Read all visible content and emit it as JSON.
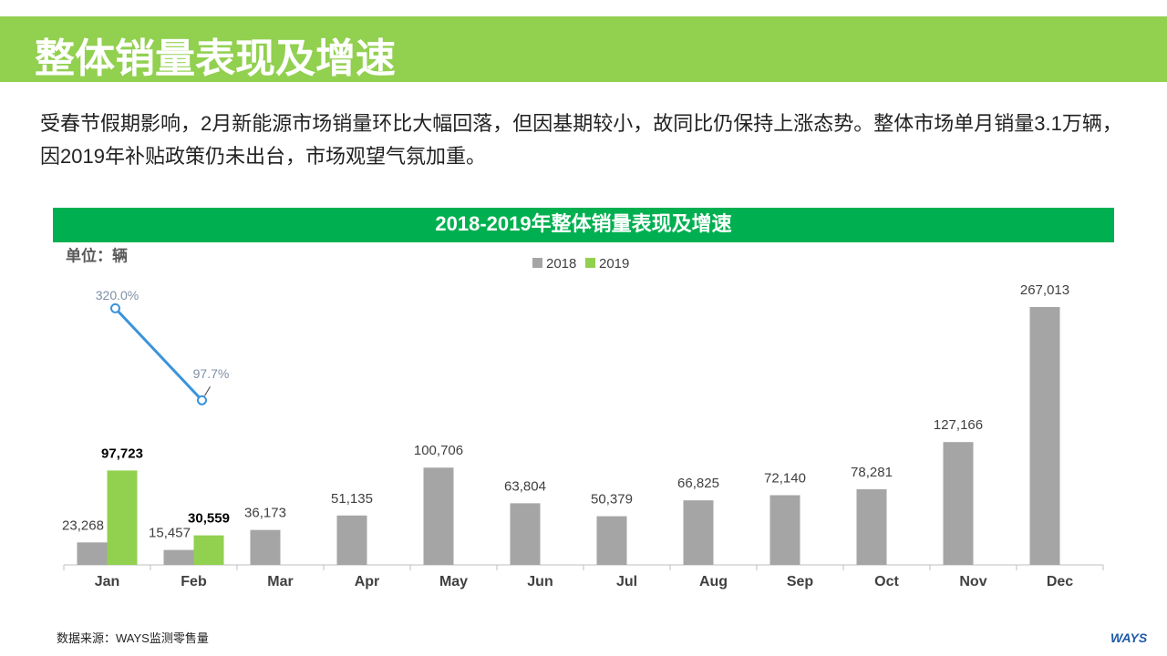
{
  "header": {
    "title": "整体销量表现及增速"
  },
  "description": "受春节假期影响，2月新能源市场销量环比大幅回落，但因基期较小，故同比仍保持上涨态势。整体市场单月销量3.1万辆，因2019年补贴政策仍未出台，市场观望气氛加重。",
  "chart_data": {
    "type": "bar",
    "title": "2018-2019年整体销量表现及增速",
    "unit_label": "单位：辆",
    "categories": [
      "Jan",
      "Feb",
      "Mar",
      "Apr",
      "May",
      "Jun",
      "Jul",
      "Aug",
      "Sep",
      "Oct",
      "Nov",
      "Dec"
    ],
    "series": [
      {
        "name": "2018",
        "color": "#a5a5a5",
        "values": [
          23268,
          15457,
          36173,
          51135,
          100706,
          63804,
          50379,
          66825,
          72140,
          78281,
          127166,
          267013
        ],
        "value_labels": [
          "23,268",
          "15,457",
          "36,173",
          "51,135",
          "100,706",
          "63,804",
          "50,379",
          "66,825",
          "72,140",
          "78,281",
          "127,166",
          "267,013"
        ]
      },
      {
        "name": "2019",
        "color": "#92d050",
        "values": [
          97723,
          30559,
          null,
          null,
          null,
          null,
          null,
          null,
          null,
          null,
          null,
          null
        ],
        "value_labels": [
          "97,723",
          "30,559",
          null,
          null,
          null,
          null,
          null,
          null,
          null,
          null,
          null,
          null
        ]
      },
      {
        "type": "line",
        "axis": "y2",
        "color": "#3a94dc",
        "values": [
          320.0,
          97.7,
          null,
          null,
          null,
          null,
          null,
          null,
          null,
          null,
          null,
          null
        ],
        "value_labels": [
          "320.0%",
          "97.7%",
          null,
          null,
          null,
          null,
          null,
          null,
          null,
          null,
          null,
          null
        ]
      }
    ],
    "ylim": [
      0,
      300000
    ],
    "y2lim": [
      -300,
      400
    ],
    "legend": "top"
  },
  "source": "数据来源：WAYS监测零售量",
  "logo": "WAYS"
}
